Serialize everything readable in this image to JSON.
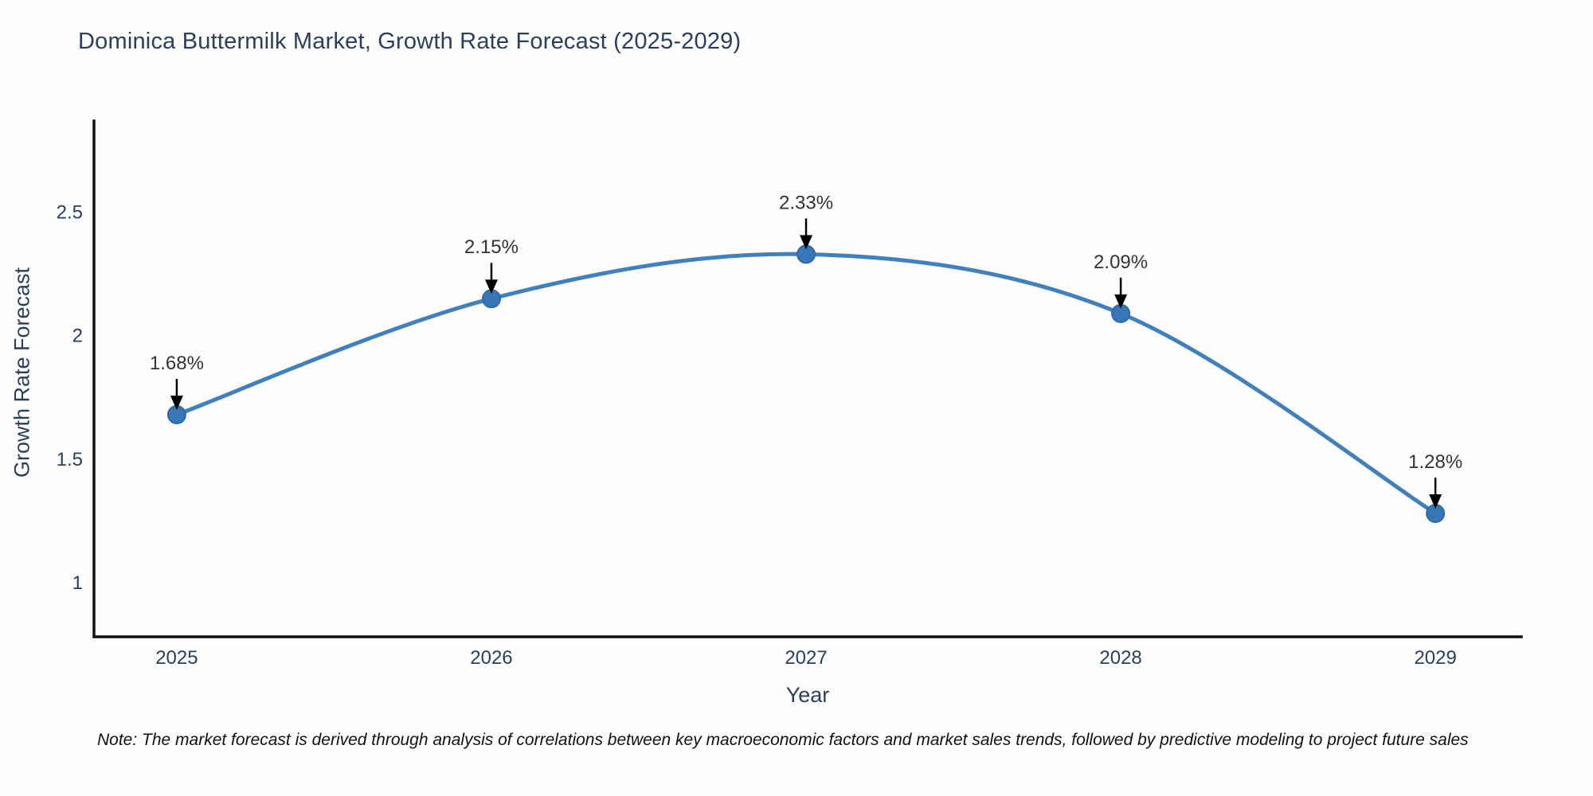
{
  "title": "Dominica Buttermilk Market, Growth Rate Forecast (2025-2029)",
  "note": "Note: The market forecast is derived through analysis of correlations between key macroeconomic factors and market sales trends, followed by predictive modeling to project future sales",
  "axes": {
    "x_title": "Year",
    "y_title": "Growth Rate Forecast"
  },
  "chart_data": {
    "type": "line",
    "title": "Dominica Buttermilk Market, Growth Rate Forecast (2025-2029)",
    "xlabel": "Year",
    "ylabel": "Growth Rate Forecast",
    "x": [
      2025,
      2026,
      2027,
      2028,
      2029
    ],
    "values": [
      1.68,
      2.15,
      2.33,
      2.09,
      1.28
    ],
    "point_labels": [
      "1.68%",
      "2.15%",
      "2.33%",
      "2.09%",
      "1.28%"
    ],
    "xtick_labels": [
      "2025",
      "2026",
      "2027",
      "2028",
      "2029"
    ],
    "yticks": [
      1,
      1.5,
      2,
      2.5
    ],
    "ytick_labels": [
      "1",
      "1.5",
      "2",
      "2.5"
    ],
    "xlim": [
      2024.737,
      2029.273
    ],
    "ylim": [
      0.78,
      2.87
    ],
    "grid": false,
    "legend_position": "none",
    "line_shape": "spline",
    "annotations": "value labels with down arrows above each point"
  },
  "colors": {
    "line": "#4080bd",
    "marker_fill": "#3876b8",
    "marker_edge": "#2d6aa8",
    "axis_line": "#111111",
    "tick_text": "#2a3f5f",
    "title_text": "#2a3f5f",
    "annotation_text": "#333333",
    "arrow": "#000000",
    "background": "#fdfdfd",
    "note_text": "#111111"
  }
}
